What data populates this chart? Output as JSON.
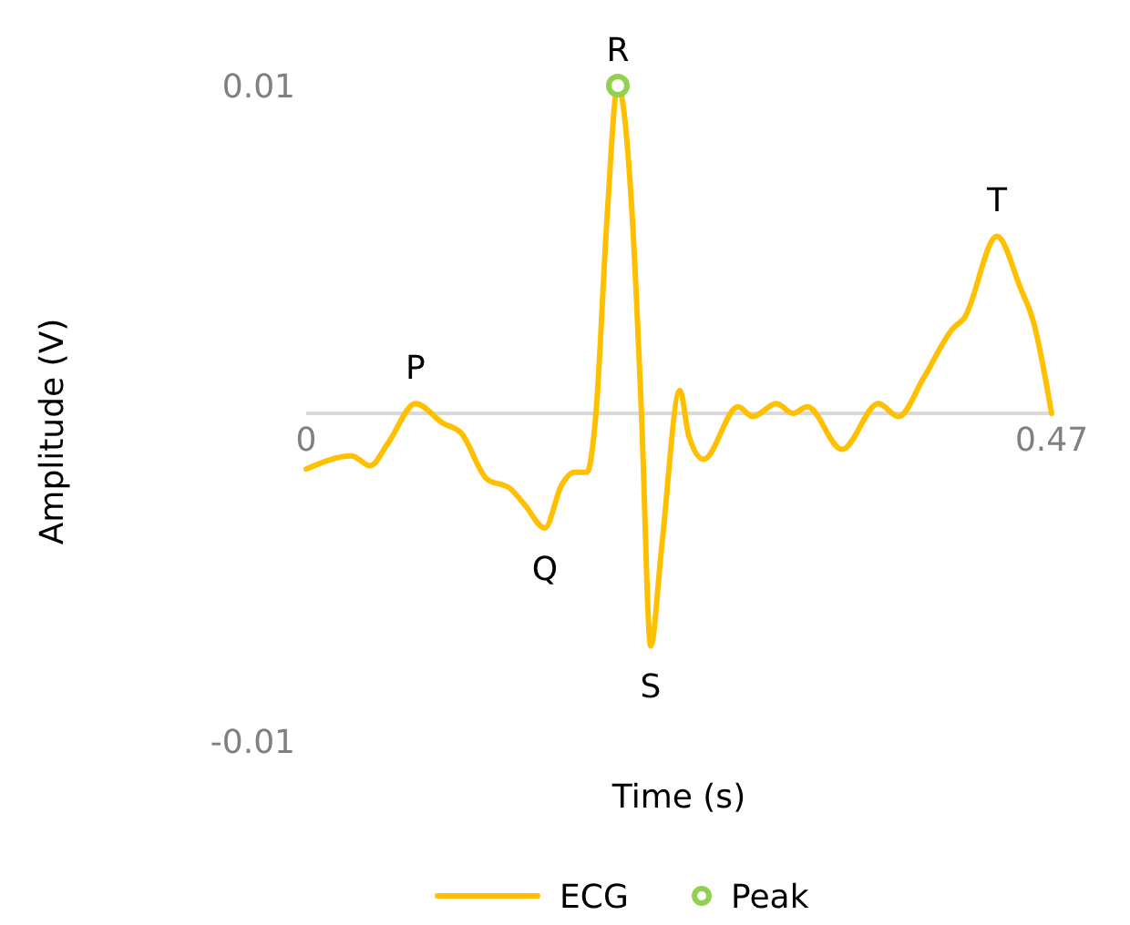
{
  "chart_data": {
    "type": "line",
    "xlabel": "Time (s)",
    "ylabel": "Amplitude (V)",
    "xlim": [
      0,
      0.47
    ],
    "xticks": [
      0,
      0.47
    ],
    "ylim": [
      -0.01,
      0.01
    ],
    "yticks": [
      -0.01,
      0.01
    ],
    "grid": false,
    "legend": "bottom",
    "line_style": "solid",
    "series": [
      {
        "name": "ECG",
        "color": "#ffc000",
        "marker": "none",
        "x": [
          0,
          0.0287,
          0.0402,
          0.0517,
          0.0689,
          0.0862,
          0.0977,
          0.1138,
          0.1287,
          0.1379,
          0.1505,
          0.1609,
          0.1689,
          0.177,
          0.1827,
          0.1896,
          0.1965,
          0.2057,
          0.2114,
          0.2172,
          0.2241,
          0.2356,
          0.2413,
          0.2505,
          0.2723,
          0.2815,
          0.2965,
          0.3068,
          0.316,
          0.3378,
          0.3608,
          0.3734,
          0.3895,
          0.4079,
          0.4148,
          0.4355,
          0.4505,
          0.4585,
          0.47
        ],
        "values": [
          -0.0017,
          -0.0013,
          -0.0016,
          -0.0009,
          0.0003,
          -0.0003,
          -0.0006,
          -0.002,
          -0.0023,
          -0.0028,
          -0.0035,
          -0.0022,
          -0.0018,
          -0.0018,
          0,
          0.0059,
          0.01,
          0.0059,
          0,
          -0.0071,
          -0.0041,
          0.0007,
          -0.0007,
          -0.0014,
          0.0002,
          -0.0001,
          0.0003,
          0,
          0.0002,
          -0.0011,
          0.0003,
          -0.0001,
          0.0011,
          0.0026,
          0.0029,
          0.0054,
          0.0038,
          0.0028,
          0
        ]
      },
      {
        "name": "Peak",
        "type": "scatter",
        "color": "#92d050",
        "marker": "circle",
        "x": [
          0.1965
        ],
        "values": [
          0.01
        ]
      }
    ],
    "annotations": [
      {
        "text": "P",
        "x": 0.0689,
        "y": 0.0003
      },
      {
        "text": "Q",
        "x": 0.1505,
        "y": -0.0035
      },
      {
        "text": "R",
        "x": 0.1965,
        "y": 0.01
      },
      {
        "text": "S",
        "x": 0.2172,
        "y": -0.0071
      },
      {
        "text": "T",
        "x": 0.4355,
        "y": 0.0054
      }
    ]
  }
}
